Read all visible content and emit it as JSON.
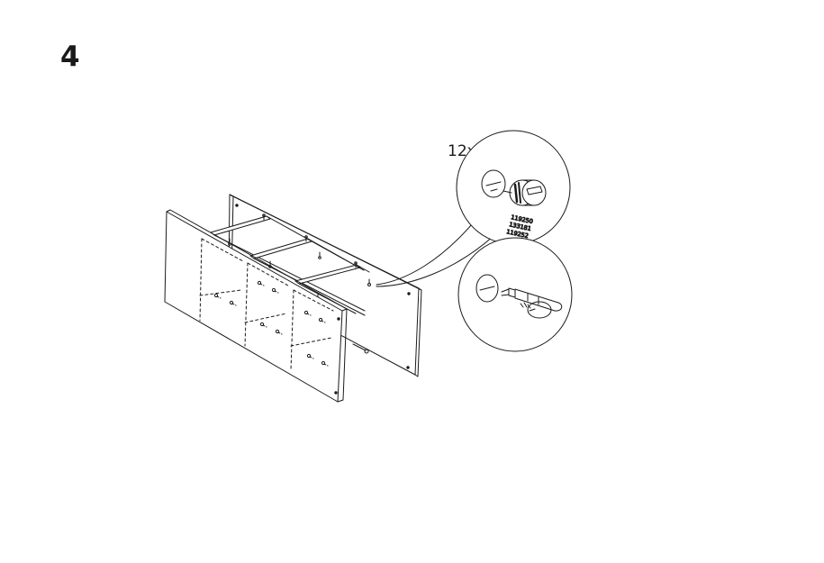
{
  "step": {
    "number": "4"
  },
  "detail": {
    "quantity": "12x",
    "part_numbers": [
      "119250",
      "133181",
      "119252"
    ]
  },
  "colors": {
    "line": "#1a1a1a",
    "background": "#ffffff"
  }
}
